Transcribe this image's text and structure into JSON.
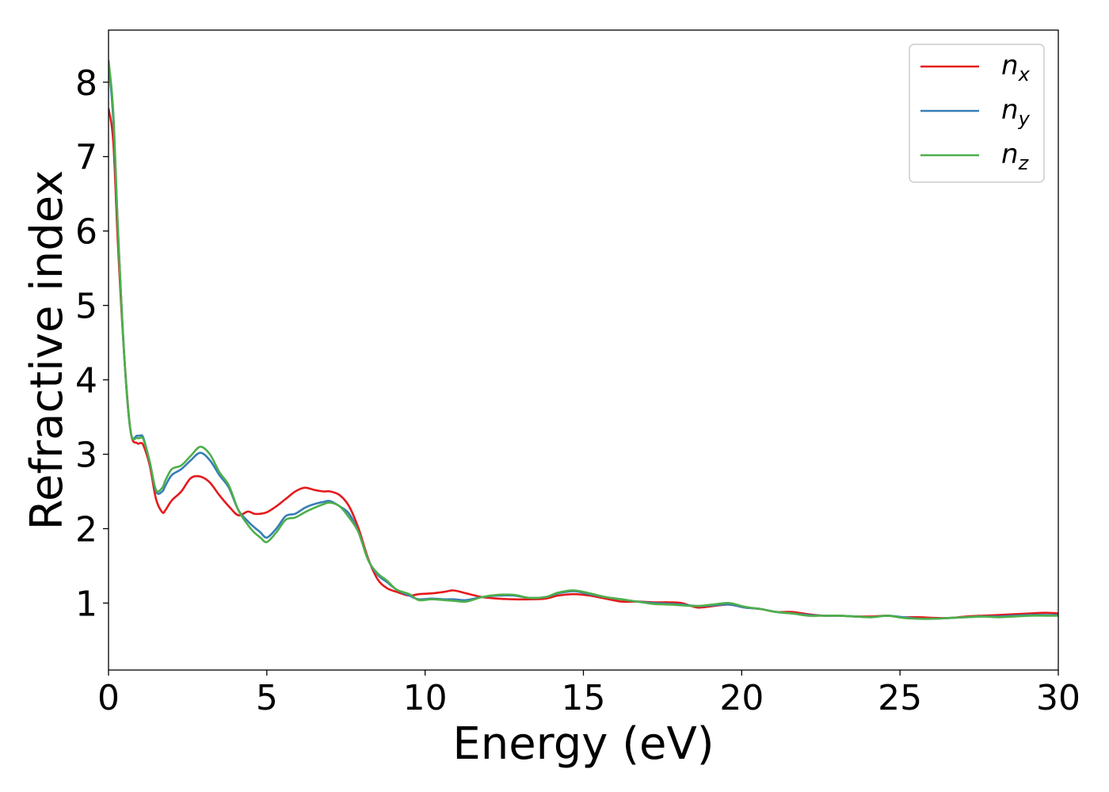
{
  "chart_data": {
    "type": "line",
    "xlabel": "Energy (eV)",
    "ylabel": "Refractive index",
    "xlim": [
      0,
      30
    ],
    "ylim": [
      0.1,
      8.7
    ],
    "xticks": [
      0,
      5,
      10,
      15,
      20,
      25,
      30
    ],
    "yticks": [
      1,
      2,
      3,
      4,
      5,
      6,
      7,
      8
    ],
    "grid": false,
    "legend_position": "top-right",
    "series": [
      {
        "name": "n",
        "subscript": "x",
        "color": "#e41a1c",
        "x": [
          0,
          0.15,
          0.3,
          0.5,
          0.7,
          0.9,
          1.0,
          1.1,
          1.3,
          1.5,
          1.7,
          1.8,
          2.0,
          2.3,
          2.6,
          2.9,
          3.2,
          3.5,
          3.8,
          4.1,
          4.4,
          4.6,
          4.8,
          5.0,
          5.3,
          5.6,
          5.9,
          6.2,
          6.5,
          6.8,
          7.0,
          7.3,
          7.6,
          7.9,
          8.2,
          8.5,
          8.8,
          9.1,
          9.5,
          9.8,
          10.2,
          10.6,
          10.9,
          11.3,
          11.8,
          12.3,
          12.8,
          13.3,
          13.8,
          14.2,
          14.7,
          15.2,
          15.7,
          16.2,
          16.7,
          17.2,
          17.7,
          18.1,
          18.6,
          19.1,
          19.6,
          20.1,
          20.6,
          21.1,
          21.6,
          22.1,
          22.6,
          23.1,
          23.6,
          24.1,
          24.6,
          25.1,
          25.6,
          26.1,
          26.6,
          27.1,
          27.6,
          28.1,
          28.6,
          29.1,
          29.6,
          30.0
        ],
        "values": [
          7.65,
          7.2,
          5.8,
          4.3,
          3.3,
          3.15,
          3.15,
          3.12,
          2.85,
          2.4,
          2.22,
          2.25,
          2.38,
          2.5,
          2.68,
          2.7,
          2.62,
          2.45,
          2.3,
          2.18,
          2.23,
          2.2,
          2.2,
          2.22,
          2.3,
          2.4,
          2.5,
          2.55,
          2.52,
          2.5,
          2.5,
          2.45,
          2.3,
          2.0,
          1.6,
          1.32,
          1.2,
          1.15,
          1.1,
          1.12,
          1.13,
          1.15,
          1.17,
          1.13,
          1.08,
          1.06,
          1.05,
          1.05,
          1.06,
          1.1,
          1.12,
          1.1,
          1.06,
          1.02,
          1.02,
          1.01,
          1.01,
          1.0,
          0.94,
          0.96,
          0.98,
          0.94,
          0.92,
          0.88,
          0.88,
          0.85,
          0.83,
          0.83,
          0.82,
          0.82,
          0.83,
          0.81,
          0.81,
          0.8,
          0.8,
          0.82,
          0.83,
          0.84,
          0.85,
          0.86,
          0.87,
          0.86
        ]
      },
      {
        "name": "n",
        "subscript": "y",
        "color": "#377eb8",
        "x": [
          0,
          0.15,
          0.3,
          0.5,
          0.7,
          0.9,
          1.0,
          1.1,
          1.3,
          1.5,
          1.7,
          1.8,
          2.0,
          2.3,
          2.6,
          2.9,
          3.2,
          3.5,
          3.8,
          4.1,
          4.4,
          4.6,
          4.8,
          5.0,
          5.3,
          5.6,
          5.9,
          6.2,
          6.5,
          6.8,
          7.0,
          7.3,
          7.6,
          7.9,
          8.2,
          8.5,
          8.8,
          9.1,
          9.5,
          9.8,
          10.2,
          10.6,
          10.9,
          11.3,
          11.8,
          12.3,
          12.8,
          13.3,
          13.8,
          14.2,
          14.7,
          15.2,
          15.7,
          16.2,
          16.7,
          17.2,
          17.7,
          18.1,
          18.6,
          19.1,
          19.6,
          20.1,
          20.6,
          21.1,
          21.6,
          22.1,
          22.6,
          23.1,
          23.6,
          24.1,
          24.6,
          25.1,
          25.6,
          26.1,
          26.6,
          27.1,
          27.6,
          28.1,
          28.6,
          29.1,
          29.6,
          30.0
        ],
        "values": [
          8.25,
          7.5,
          6.0,
          4.3,
          3.3,
          3.25,
          3.25,
          3.22,
          2.9,
          2.5,
          2.5,
          2.58,
          2.72,
          2.8,
          2.92,
          3.02,
          2.92,
          2.72,
          2.55,
          2.25,
          2.1,
          2.02,
          1.95,
          1.88,
          2.0,
          2.17,
          2.2,
          2.28,
          2.33,
          2.36,
          2.37,
          2.3,
          2.2,
          1.95,
          1.58,
          1.38,
          1.28,
          1.18,
          1.1,
          1.05,
          1.06,
          1.05,
          1.05,
          1.04,
          1.08,
          1.1,
          1.1,
          1.07,
          1.08,
          1.13,
          1.16,
          1.12,
          1.08,
          1.05,
          1.02,
          1.0,
          0.99,
          0.98,
          0.96,
          0.97,
          0.98,
          0.94,
          0.92,
          0.88,
          0.86,
          0.84,
          0.83,
          0.83,
          0.82,
          0.81,
          0.83,
          0.81,
          0.79,
          0.79,
          0.8,
          0.81,
          0.82,
          0.82,
          0.83,
          0.84,
          0.84,
          0.84
        ]
      },
      {
        "name": "n",
        "subscript": "z",
        "color": "#4daf4a",
        "x": [
          0,
          0.15,
          0.3,
          0.5,
          0.7,
          0.9,
          1.0,
          1.1,
          1.3,
          1.5,
          1.7,
          1.8,
          2.0,
          2.3,
          2.6,
          2.9,
          3.2,
          3.5,
          3.8,
          4.1,
          4.4,
          4.6,
          4.8,
          5.0,
          5.3,
          5.6,
          5.9,
          6.2,
          6.5,
          6.8,
          7.0,
          7.3,
          7.6,
          7.9,
          8.2,
          8.5,
          8.8,
          9.1,
          9.5,
          9.8,
          10.2,
          10.6,
          10.9,
          11.3,
          11.8,
          12.3,
          12.8,
          13.3,
          13.8,
          14.2,
          14.7,
          15.2,
          15.7,
          16.2,
          16.7,
          17.2,
          17.7,
          18.1,
          18.6,
          19.1,
          19.6,
          20.1,
          20.6,
          21.1,
          21.6,
          22.1,
          22.6,
          23.1,
          23.6,
          24.1,
          24.6,
          25.1,
          25.6,
          26.1,
          26.6,
          27.1,
          27.6,
          28.1,
          28.6,
          29.1,
          29.6,
          30.0
        ],
        "values": [
          8.3,
          7.6,
          6.0,
          4.3,
          3.3,
          3.22,
          3.22,
          3.2,
          2.9,
          2.52,
          2.55,
          2.65,
          2.8,
          2.85,
          2.98,
          3.1,
          3.0,
          2.76,
          2.58,
          2.25,
          2.05,
          1.95,
          1.88,
          1.82,
          1.95,
          2.12,
          2.15,
          2.22,
          2.28,
          2.33,
          2.35,
          2.3,
          2.15,
          1.95,
          1.58,
          1.4,
          1.3,
          1.18,
          1.12,
          1.04,
          1.05,
          1.04,
          1.03,
          1.02,
          1.08,
          1.11,
          1.11,
          1.07,
          1.08,
          1.14,
          1.17,
          1.13,
          1.08,
          1.05,
          1.02,
          0.99,
          0.98,
          0.97,
          0.96,
          0.98,
          1.0,
          0.95,
          0.92,
          0.88,
          0.86,
          0.83,
          0.83,
          0.83,
          0.82,
          0.81,
          0.83,
          0.8,
          0.79,
          0.79,
          0.8,
          0.81,
          0.82,
          0.81,
          0.82,
          0.83,
          0.83,
          0.83
        ]
      }
    ]
  }
}
